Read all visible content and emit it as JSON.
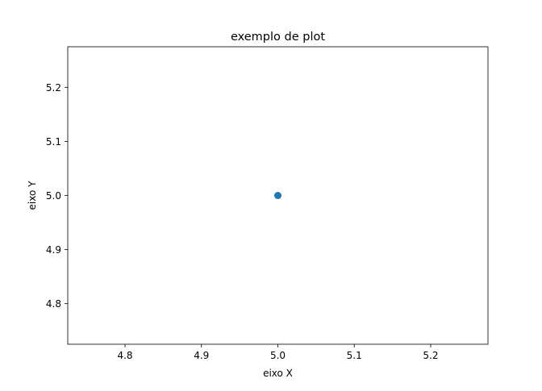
{
  "chart_data": {
    "type": "scatter",
    "title": "exemplo de plot",
    "xlabel": "eixo X",
    "ylabel": "eixo Y",
    "xlim": [
      4.725,
      5.275
    ],
    "ylim": [
      4.725,
      5.275
    ],
    "x_ticks": [
      4.8,
      4.9,
      5.0,
      5.1,
      5.2
    ],
    "y_ticks": [
      4.8,
      4.9,
      5.0,
      5.1,
      5.2
    ],
    "x_tick_labels": [
      "4.8",
      "4.9",
      "5.0",
      "5.1",
      "5.2"
    ],
    "y_tick_labels": [
      "4.8",
      "4.9",
      "5.0",
      "5.1",
      "5.2"
    ],
    "grid": false,
    "series": [
      {
        "color": "#1f77b4",
        "points": [
          {
            "x": 5.0,
            "y": 5.0
          }
        ]
      }
    ]
  }
}
